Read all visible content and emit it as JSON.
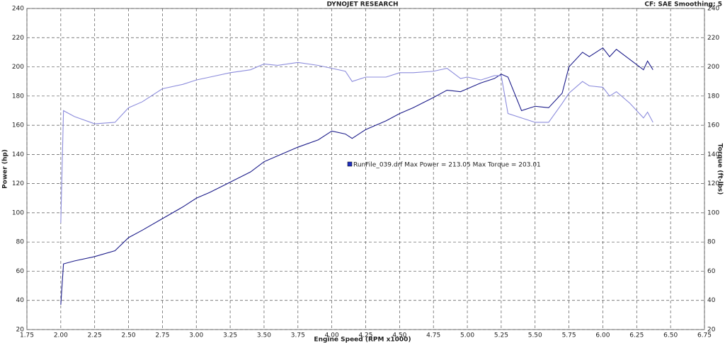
{
  "chart_data": {
    "type": "line",
    "title": "DYNOJET RESEARCH",
    "subtitle": "CF: SAE  Smoothing: 5",
    "x_label": "Engine Speed (RPM x1000)",
    "y_label": "Power (hp)",
    "y2_label": "Torque (ft-lbs)",
    "annotation": "RunFile_039.drf Max Power = 213.05     Max Torque = 203.01",
    "annotation_color": "#1f2fbf",
    "x": [
      2.0,
      2.02,
      2.1,
      2.25,
      2.4,
      2.5,
      2.6,
      2.75,
      2.9,
      3.0,
      3.1,
      3.25,
      3.4,
      3.5,
      3.6,
      3.75,
      3.9,
      4.0,
      4.1,
      4.15,
      4.25,
      4.4,
      4.5,
      4.6,
      4.75,
      4.85,
      4.95,
      5.0,
      5.1,
      5.2,
      5.25,
      5.3,
      5.4,
      5.5,
      5.6,
      5.7,
      5.75,
      5.85,
      5.9,
      6.0,
      6.05,
      6.1,
      6.2,
      6.3,
      6.33,
      6.37
    ],
    "series": [
      {
        "color": "#1c1c8a",
        "values": [
          37,
          65,
          67,
          70,
          74,
          83,
          88,
          96,
          104,
          110,
          114,
          121,
          128,
          135,
          139,
          145,
          150,
          156,
          154,
          151,
          157,
          163,
          168,
          172,
          179,
          184,
          183,
          185,
          189,
          192,
          195,
          193,
          170,
          173,
          172,
          182,
          200,
          210,
          207,
          213,
          207,
          212,
          205,
          198,
          204,
          198
        ]
      },
      {
        "color": "#8c8cdc",
        "axis": "y2",
        "values": [
          93,
          170,
          166,
          161,
          162,
          172,
          176,
          185,
          188,
          191,
          193,
          196,
          198,
          202,
          201,
          203,
          201,
          199,
          197,
          190,
          193,
          193,
          196,
          196,
          197,
          199,
          192,
          193,
          191,
          194,
          194,
          168,
          165,
          162,
          162,
          175,
          182,
          190,
          187,
          186,
          180,
          183,
          175,
          165,
          169,
          162
        ]
      }
    ],
    "xlim": [
      1.75,
      6.75
    ],
    "xticks": [
      1.75,
      {
        "value": 2,
        "label": "2.00"
      },
      2.25,
      {
        "value": 2.5,
        "label": "2.50"
      },
      2.75,
      {
        "value": 3,
        "label": "3.00"
      },
      3.25,
      {
        "value": 3.5,
        "label": "3.50"
      },
      3.75,
      {
        "value": 4,
        "label": "4.00"
      },
      4.25,
      {
        "value": 4.5,
        "label": "4.50"
      },
      4.75,
      {
        "value": 5,
        "label": "5.00"
      },
      5.25,
      {
        "value": 5.5,
        "label": "5.50"
      },
      5.75,
      {
        "value": 6,
        "label": "6.00"
      },
      6.25,
      {
        "value": 6.5,
        "label": "6.50"
      },
      6.75
    ],
    "ylim": [
      20,
      240
    ],
    "yticks": [
      20,
      40,
      60,
      80,
      100,
      120,
      140,
      160,
      180,
      200,
      220,
      240
    ],
    "y2lim": [
      20,
      240
    ],
    "y2ticks": [
      20,
      40,
      60,
      80,
      100,
      120,
      140,
      160,
      180,
      200,
      220,
      240
    ],
    "grid": true
  }
}
